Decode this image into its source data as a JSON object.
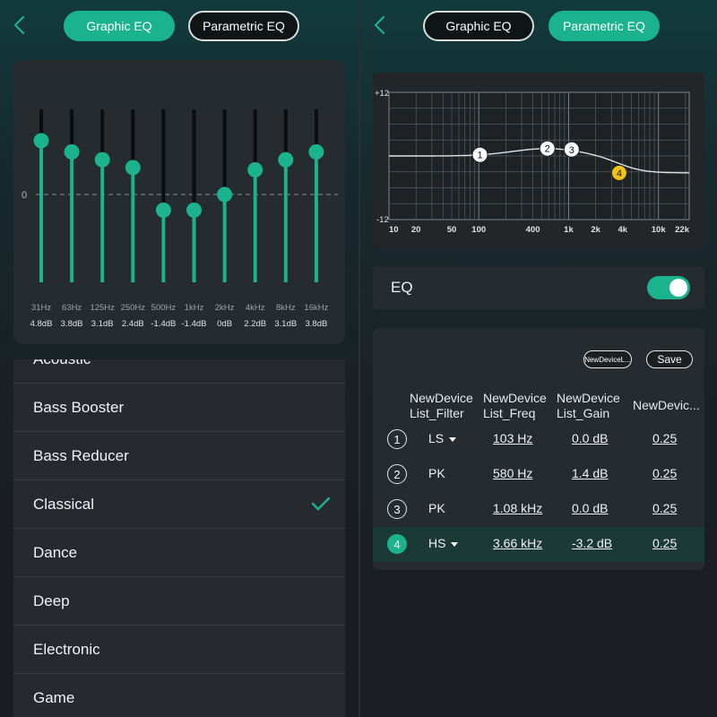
{
  "left_panel": {
    "tabs": {
      "graphic": "Graphic EQ",
      "parametric": "Parametric EQ",
      "active": "graphic"
    },
    "zero_label": "0",
    "bands": [
      {
        "freq": "31Hz",
        "gain_label": "4.8dB",
        "gain": 4.8
      },
      {
        "freq": "63Hz",
        "gain_label": "3.8dB",
        "gain": 3.8
      },
      {
        "freq": "125Hz",
        "gain_label": "3.1dB",
        "gain": 3.1
      },
      {
        "freq": "250Hz",
        "gain_label": "2.4dB",
        "gain": 2.4
      },
      {
        "freq": "500Hz",
        "gain_label": "-1.4dB",
        "gain": -1.4
      },
      {
        "freq": "1kHz",
        "gain_label": "-1.4dB",
        "gain": -1.4
      },
      {
        "freq": "2kHz",
        "gain_label": "0dB",
        "gain": 0
      },
      {
        "freq": "4kHz",
        "gain_label": "2.2dB",
        "gain": 2.2
      },
      {
        "freq": "8kHz",
        "gain_label": "3.1dB",
        "gain": 3.1
      },
      {
        "freq": "16kHz",
        "gain_label": "3.8dB",
        "gain": 3.8
      }
    ],
    "presets": [
      {
        "label": "Acoustic",
        "selected": false
      },
      {
        "label": "Bass Booster",
        "selected": false
      },
      {
        "label": "Bass Reducer",
        "selected": false
      },
      {
        "label": "Classical",
        "selected": true
      },
      {
        "label": "Dance",
        "selected": false
      },
      {
        "label": "Deep",
        "selected": false
      },
      {
        "label": "Electronic",
        "selected": false
      },
      {
        "label": "Game",
        "selected": false
      }
    ]
  },
  "right_panel": {
    "tabs": {
      "graphic": "Graphic EQ",
      "parametric": "Parametric EQ",
      "active": "parametric"
    },
    "graph": {
      "y_top_label": "+12",
      "y_bottom_label": "-12",
      "x_ticks": [
        "10",
        "20",
        "50",
        "100",
        "400",
        "1k",
        "2k",
        "4k",
        "10k",
        "22k"
      ],
      "x_tick_values": [
        10,
        20,
        50,
        100,
        400,
        1000,
        2000,
        4000,
        10000,
        22000
      ],
      "markers": [
        {
          "label": "1",
          "freq_hz": 103,
          "gain_db": 0.0
        },
        {
          "label": "2",
          "freq_hz": 580,
          "gain_db": 1.4
        },
        {
          "label": "3",
          "freq_hz": 1080,
          "gain_db": 0.0
        },
        {
          "label": "4",
          "freq_hz": 3660,
          "gain_db": -3.2
        }
      ]
    },
    "eq_label": "EQ",
    "eq_enabled": true,
    "table": {
      "name_button": "NewDeviceL...",
      "save_button": "Save",
      "headers": {
        "filter": [
          "NewDevice",
          "List_Filter"
        ],
        "freq": [
          "NewDevice",
          "List_Freq"
        ],
        "gain": [
          "NewDevice",
          "List_Gain"
        ],
        "q": [
          "NewDevic..."
        ]
      },
      "rows": [
        {
          "num": "1",
          "filter": "LS",
          "dropdown": true,
          "freq": "103 Hz",
          "gain": "0.0 dB",
          "q": "0.25"
        },
        {
          "num": "2",
          "filter": "PK",
          "dropdown": false,
          "freq": "580 Hz",
          "gain": "1.4 dB",
          "q": "0.25"
        },
        {
          "num": "3",
          "filter": "PK",
          "dropdown": false,
          "freq": "1.08 kHz",
          "gain": "0.0 dB",
          "q": "0.25"
        },
        {
          "num": "4",
          "filter": "HS",
          "dropdown": true,
          "freq": "3.66 kHz",
          "gain": "-3.2 dB",
          "q": "0.25",
          "selected": true
        }
      ]
    }
  },
  "colors": {
    "accent": "#1ab38e",
    "marker_selected": "#f2c40f"
  },
  "icons": {
    "back": "chevron-left-icon",
    "check": "checkmark-icon",
    "dropdown": "caret-down-icon"
  }
}
